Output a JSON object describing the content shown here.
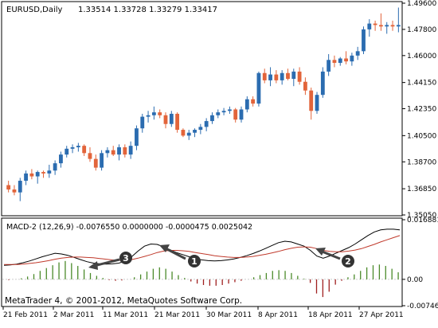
{
  "main": {
    "symbol_label": "EURUSD,Daily",
    "ohlc_label": "1.33514 1.33728 1.33279 1.33417",
    "price_ticks": [
      "1.49600",
      "1.47800",
      "1.46000",
      "1.44150",
      "1.42350",
      "1.40500",
      "1.38700",
      "1.36850",
      "1.35050"
    ],
    "price_range": [
      1.3505,
      1.496
    ]
  },
  "macd": {
    "label": "MACD-2 (12,26,9) -0.0076550 0.0000000 -0.0000475 0.0025042",
    "ticks": [
      "0.016881",
      "0.00",
      "-0.007460"
    ],
    "watermark": "MetaTrader 4, © 2001-2012, MetaQuotes Software Corp."
  },
  "time_axis": {
    "labels": [
      "21 Feb 2011",
      "2 Mar 2011",
      "11 Mar 2011",
      "21 Mar 2011",
      "30 Mar 2011",
      "8 Apr 2011",
      "18 Apr 2011",
      "27 Apr 2011"
    ]
  },
  "annotations": [
    {
      "number": "1"
    },
    {
      "number": "2"
    },
    {
      "number": "3"
    }
  ],
  "colors": {
    "bull": "#2b6cb0",
    "bear": "#e2643a",
    "macd_line": "#000000",
    "signal_line": "#c0392b",
    "hist_pos": "#4a8a2a",
    "hist_neg": "#a02020",
    "grid": "#d0d0d0",
    "axis_text": "#000000"
  },
  "chart_data": [
    {
      "type": "candlestick",
      "title": "EURUSD,Daily",
      "ylim": [
        1.3505,
        1.496
      ],
      "x": [
        "21 Feb 2011",
        "2 Mar 2011",
        "11 Mar 2011",
        "21 Mar 2011",
        "30 Mar 2011",
        "8 Apr 2011",
        "18 Apr 2011",
        "27 Apr 2011"
      ],
      "candles": [
        {
          "o": 1.371,
          "h": 1.374,
          "l": 1.366,
          "c": 1.368
        },
        {
          "o": 1.368,
          "h": 1.371,
          "l": 1.364,
          "c": 1.366
        },
        {
          "o": 1.366,
          "h": 1.376,
          "l": 1.36,
          "c": 1.374
        },
        {
          "o": 1.374,
          "h": 1.381,
          "l": 1.371,
          "c": 1.379
        },
        {
          "o": 1.379,
          "h": 1.382,
          "l": 1.375,
          "c": 1.377
        },
        {
          "o": 1.377,
          "h": 1.381,
          "l": 1.372,
          "c": 1.38
        },
        {
          "o": 1.38,
          "h": 1.381,
          "l": 1.376,
          "c": 1.379
        },
        {
          "o": 1.379,
          "h": 1.385,
          "l": 1.376,
          "c": 1.381
        },
        {
          "o": 1.381,
          "h": 1.388,
          "l": 1.378,
          "c": 1.386
        },
        {
          "o": 1.386,
          "h": 1.394,
          "l": 1.383,
          "c": 1.392
        },
        {
          "o": 1.392,
          "h": 1.398,
          "l": 1.39,
          "c": 1.396
        },
        {
          "o": 1.396,
          "h": 1.399,
          "l": 1.393,
          "c": 1.397
        },
        {
          "o": 1.397,
          "h": 1.4,
          "l": 1.394,
          "c": 1.398
        },
        {
          "o": 1.398,
          "h": 1.399,
          "l": 1.391,
          "c": 1.393
        },
        {
          "o": 1.393,
          "h": 1.397,
          "l": 1.387,
          "c": 1.389
        },
        {
          "o": 1.389,
          "h": 1.392,
          "l": 1.381,
          "c": 1.383
        },
        {
          "o": 1.383,
          "h": 1.395,
          "l": 1.381,
          "c": 1.393
        },
        {
          "o": 1.393,
          "h": 1.397,
          "l": 1.39,
          "c": 1.395
        },
        {
          "o": 1.395,
          "h": 1.398,
          "l": 1.391,
          "c": 1.392
        },
        {
          "o": 1.392,
          "h": 1.399,
          "l": 1.388,
          "c": 1.397
        },
        {
          "o": 1.397,
          "h": 1.399,
          "l": 1.39,
          "c": 1.392
        },
        {
          "o": 1.392,
          "h": 1.401,
          "l": 1.389,
          "c": 1.398
        },
        {
          "o": 1.398,
          "h": 1.412,
          "l": 1.395,
          "c": 1.41
        },
        {
          "o": 1.41,
          "h": 1.42,
          "l": 1.407,
          "c": 1.418
        },
        {
          "o": 1.418,
          "h": 1.422,
          "l": 1.414,
          "c": 1.419
        },
        {
          "o": 1.419,
          "h": 1.425,
          "l": 1.416,
          "c": 1.421
        },
        {
          "o": 1.421,
          "h": 1.423,
          "l": 1.417,
          "c": 1.419
        },
        {
          "o": 1.419,
          "h": 1.421,
          "l": 1.41,
          "c": 1.413
        },
        {
          "o": 1.413,
          "h": 1.422,
          "l": 1.411,
          "c": 1.42
        },
        {
          "o": 1.42,
          "h": 1.421,
          "l": 1.407,
          "c": 1.409
        },
        {
          "o": 1.409,
          "h": 1.41,
          "l": 1.404,
          "c": 1.405
        },
        {
          "o": 1.405,
          "h": 1.409,
          "l": 1.402,
          "c": 1.407
        },
        {
          "o": 1.407,
          "h": 1.41,
          "l": 1.404,
          "c": 1.409
        },
        {
          "o": 1.409,
          "h": 1.413,
          "l": 1.406,
          "c": 1.411
        },
        {
          "o": 1.411,
          "h": 1.417,
          "l": 1.408,
          "c": 1.415
        },
        {
          "o": 1.415,
          "h": 1.421,
          "l": 1.413,
          "c": 1.419
        },
        {
          "o": 1.419,
          "h": 1.423,
          "l": 1.417,
          "c": 1.421
        },
        {
          "o": 1.421,
          "h": 1.424,
          "l": 1.419,
          "c": 1.422
        },
        {
          "o": 1.422,
          "h": 1.425,
          "l": 1.42,
          "c": 1.423
        },
        {
          "o": 1.423,
          "h": 1.424,
          "l": 1.414,
          "c": 1.416
        },
        {
          "o": 1.416,
          "h": 1.425,
          "l": 1.414,
          "c": 1.423
        },
        {
          "o": 1.423,
          "h": 1.432,
          "l": 1.421,
          "c": 1.43
        },
        {
          "o": 1.43,
          "h": 1.432,
          "l": 1.425,
          "c": 1.427
        },
        {
          "o": 1.427,
          "h": 1.449,
          "l": 1.425,
          "c": 1.448
        },
        {
          "o": 1.448,
          "h": 1.451,
          "l": 1.441,
          "c": 1.443
        },
        {
          "o": 1.443,
          "h": 1.452,
          "l": 1.439,
          "c": 1.447
        },
        {
          "o": 1.447,
          "h": 1.45,
          "l": 1.441,
          "c": 1.443
        },
        {
          "o": 1.443,
          "h": 1.45,
          "l": 1.44,
          "c": 1.448
        },
        {
          "o": 1.448,
          "h": 1.451,
          "l": 1.443,
          "c": 1.444
        },
        {
          "o": 1.444,
          "h": 1.451,
          "l": 1.439,
          "c": 1.449
        },
        {
          "o": 1.449,
          "h": 1.452,
          "l": 1.44,
          "c": 1.442
        },
        {
          "o": 1.442,
          "h": 1.445,
          "l": 1.433,
          "c": 1.436
        },
        {
          "o": 1.436,
          "h": 1.438,
          "l": 1.416,
          "c": 1.422
        },
        {
          "o": 1.422,
          "h": 1.435,
          "l": 1.42,
          "c": 1.433
        },
        {
          "o": 1.433,
          "h": 1.452,
          "l": 1.431,
          "c": 1.449
        },
        {
          "o": 1.449,
          "h": 1.461,
          "l": 1.446,
          "c": 1.457
        },
        {
          "o": 1.457,
          "h": 1.46,
          "l": 1.452,
          "c": 1.455
        },
        {
          "o": 1.455,
          "h": 1.459,
          "l": 1.453,
          "c": 1.458
        },
        {
          "o": 1.458,
          "h": 1.463,
          "l": 1.454,
          "c": 1.456
        },
        {
          "o": 1.456,
          "h": 1.462,
          "l": 1.453,
          "c": 1.46
        },
        {
          "o": 1.46,
          "h": 1.466,
          "l": 1.457,
          "c": 1.463
        },
        {
          "o": 1.463,
          "h": 1.48,
          "l": 1.461,
          "c": 1.478
        },
        {
          "o": 1.478,
          "h": 1.485,
          "l": 1.473,
          "c": 1.482
        },
        {
          "o": 1.482,
          "h": 1.484,
          "l": 1.477,
          "c": 1.481
        },
        {
          "o": 1.481,
          "h": 1.489,
          "l": 1.477,
          "c": 1.48
        },
        {
          "o": 1.48,
          "h": 1.483,
          "l": 1.475,
          "c": 1.481
        },
        {
          "o": 1.481,
          "h": 1.484,
          "l": 1.477,
          "c": 1.48
        },
        {
          "o": 1.48,
          "h": 1.493,
          "l": 1.476,
          "c": 1.481
        }
      ]
    },
    {
      "type": "line",
      "title": "MACD-2 (12,26,9)",
      "ylim": [
        -0.00746,
        0.016881
      ],
      "series": [
        {
          "values": [
            0.004,
            0.0041,
            0.0043,
            0.0047,
            0.0052,
            0.0058,
            0.0064,
            0.0069,
            0.0074,
            0.0072,
            0.0068,
            0.0062,
            0.0056,
            0.005,
            0.0046,
            0.0044,
            0.0043,
            0.0044,
            0.0046,
            0.0052,
            0.0064,
            0.008,
            0.0094,
            0.01,
            0.0099,
            0.0092,
            0.0084,
            0.0076,
            0.007,
            0.0064,
            0.0058,
            0.0055,
            0.0053,
            0.0052,
            0.0053,
            0.0055,
            0.0058,
            0.0062,
            0.0067,
            0.0073,
            0.008,
            0.0088,
            0.0096,
            0.0104,
            0.0108,
            0.0106,
            0.01,
            0.0094,
            0.0082,
            0.0066,
            0.006,
            0.0066,
            0.0074,
            0.0082,
            0.009,
            0.01,
            0.0112,
            0.0124,
            0.0134,
            0.014,
            0.0142,
            0.0142,
            0.014
          ]
        },
        {
          "values": [
            0.0042,
            0.0042,
            0.0042,
            0.0043,
            0.0045,
            0.0047,
            0.005,
            0.0053,
            0.0057,
            0.006,
            0.0062,
            0.0063,
            0.0063,
            0.0062,
            0.0061,
            0.0059,
            0.0057,
            0.0055,
            0.0054,
            0.0054,
            0.0056,
            0.006,
            0.0065,
            0.007,
            0.0076,
            0.008,
            0.0082,
            0.0082,
            0.0081,
            0.0079,
            0.0076,
            0.0073,
            0.007,
            0.0067,
            0.0065,
            0.0063,
            0.0062,
            0.0062,
            0.0063,
            0.0065,
            0.0068,
            0.0071,
            0.0075,
            0.0079,
            0.0084,
            0.0088,
            0.0091,
            0.0092,
            0.0091,
            0.0087,
            0.0082,
            0.0079,
            0.0078,
            0.0078,
            0.008,
            0.0083,
            0.0087,
            0.0093,
            0.0099,
            0.0106,
            0.0112,
            0.0118,
            0.0124
          ]
        }
      ],
      "histogram": [
        -0.0002,
        0.0,
        0.0003,
        0.0008,
        0.0015,
        0.0024,
        0.0032,
        0.004,
        0.0048,
        0.0052,
        0.0046,
        0.0038,
        0.0028,
        0.0018,
        0.001,
        0.0004,
        -0.0002,
        -0.0004,
        -0.0003,
        0.0,
        0.0006,
        0.0014,
        0.0022,
        0.003,
        0.0034,
        0.003,
        0.0022,
        0.0012,
        0.0004,
        -0.0006,
        -0.0012,
        -0.0016,
        -0.0018,
        -0.0018,
        -0.0016,
        -0.0012,
        -0.0008,
        -0.0004,
        0.0,
        0.0006,
        0.0012,
        0.0018,
        0.0024,
        0.0026,
        0.0024,
        0.0018,
        0.001,
        0.0002,
        -0.001,
        -0.004,
        -0.005,
        -0.0035,
        -0.0015,
        -0.0004,
        0.0006,
        0.0014,
        0.0024,
        0.0034,
        0.004,
        0.0042,
        0.0038,
        0.003,
        0.002
      ]
    }
  ]
}
